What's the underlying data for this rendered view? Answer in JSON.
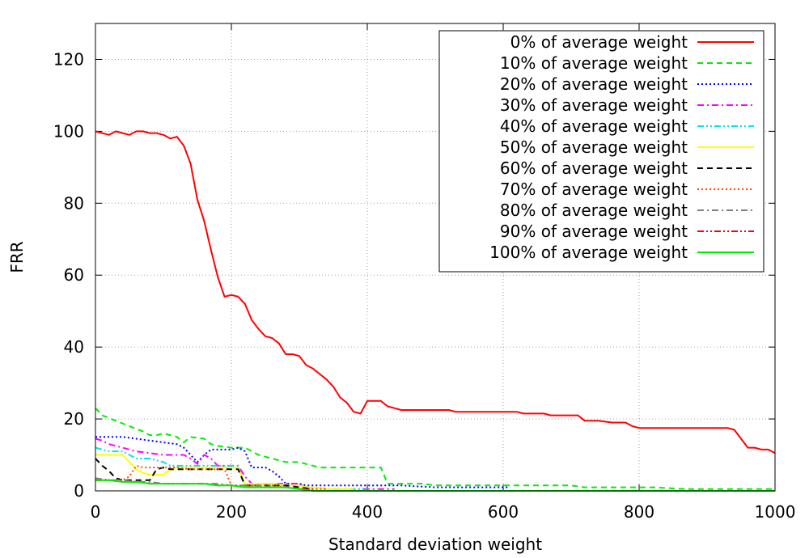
{
  "chart_data": {
    "type": "line",
    "title": "",
    "xlabel": "Standard deviation weight",
    "ylabel": "FRR",
    "xlim": [
      0,
      1000
    ],
    "ylim": [
      0,
      130
    ],
    "xticks": [
      0,
      200,
      400,
      600,
      800,
      1000
    ],
    "yticks": [
      0,
      20,
      40,
      60,
      80,
      100,
      120
    ],
    "grid": true,
    "legend_position": "top-right",
    "series": [
      {
        "name": "0% of average weight",
        "color": "#ff0000",
        "dash": "solid",
        "x": [
          0,
          10,
          20,
          30,
          40,
          50,
          60,
          70,
          80,
          90,
          100,
          110,
          120,
          130,
          140,
          150,
          160,
          170,
          180,
          190,
          200,
          210,
          220,
          230,
          240,
          250,
          260,
          270,
          280,
          290,
          300,
          310,
          320,
          330,
          340,
          350,
          360,
          370,
          380,
          390,
          400,
          410,
          420,
          430,
          440,
          450,
          460,
          500,
          520,
          530,
          560,
          600,
          620,
          630,
          660,
          670,
          680,
          700,
          710,
          720,
          740,
          760,
          770,
          780,
          790,
          800,
          920,
          930,
          940,
          960,
          970,
          980,
          990,
          1000
        ],
        "y": [
          100,
          99.5,
          99,
          100,
          99.5,
          99,
          100,
          100,
          99.5,
          99.5,
          99,
          98,
          98.5,
          96,
          91,
          81,
          75,
          67,
          59.5,
          54,
          54.5,
          54,
          52,
          47.5,
          45,
          43,
          42.5,
          41,
          38,
          38,
          37.5,
          35,
          34,
          32.5,
          31,
          29,
          26,
          24.5,
          22,
          21.5,
          25,
          25,
          25,
          23.5,
          23,
          22.5,
          22.5,
          22.5,
          22.5,
          22,
          22,
          22,
          22,
          21.5,
          21.5,
          21,
          21,
          21,
          21,
          19.5,
          19.5,
          19,
          19,
          19,
          18,
          17.5,
          17.5,
          17.5,
          17,
          12,
          12,
          11.5,
          11.5,
          10.5
        ]
      },
      {
        "name": "10% of average weight",
        "color": "#00ee00",
        "dash": "dashed",
        "x": [
          0,
          10,
          30,
          50,
          70,
          80,
          90,
          100,
          120,
          130,
          140,
          160,
          170,
          180,
          200,
          220,
          240,
          260,
          280,
          300,
          310,
          330,
          350,
          420,
          430,
          460,
          480,
          500,
          560,
          600,
          700,
          720,
          780,
          800,
          820,
          870,
          1000
        ],
        "y": [
          23,
          21,
          19.5,
          18,
          16.5,
          15.5,
          15.5,
          16,
          15,
          13.5,
          15,
          14.5,
          13,
          12.5,
          12,
          12,
          10,
          9,
          8,
          8,
          7.5,
          6.5,
          6.5,
          6.5,
          2,
          2,
          2,
          1.5,
          1.5,
          1.5,
          1.5,
          1,
          1,
          1,
          1,
          0.5,
          0.5
        ]
      },
      {
        "name": "20% of average weight",
        "color": "#0000ff",
        "dash": "dotted",
        "x": [
          0,
          20,
          40,
          60,
          80,
          100,
          120,
          130,
          140,
          150,
          160,
          170,
          180,
          190,
          200,
          210,
          220,
          230,
          250,
          260,
          270,
          280,
          300,
          310,
          320,
          340,
          360,
          400,
          450,
          500,
          520,
          560,
          600,
          610
        ],
        "y": [
          15,
          15,
          15,
          14.5,
          14,
          13.5,
          13,
          12,
          10,
          8,
          10,
          11.5,
          11.5,
          11.5,
          11.5,
          12,
          11,
          6.5,
          6.5,
          5.5,
          4,
          2,
          2,
          1.5,
          1.5,
          1.5,
          1.5,
          1.5,
          1.5,
          1,
          1,
          1,
          1,
          1
        ]
      },
      {
        "name": "30% of average weight",
        "color": "#ff00ff",
        "dash": "dashdot",
        "x": [
          0,
          10,
          20,
          40,
          60,
          80,
          100,
          120,
          130,
          140,
          150,
          160,
          170,
          180,
          200,
          210,
          220,
          230,
          260,
          280,
          300,
          310,
          350,
          400,
          440
        ],
        "y": [
          14.5,
          14,
          13,
          12,
          11,
          10.5,
          10,
          10,
          10,
          9,
          7.5,
          10,
          9,
          7,
          7,
          7,
          4,
          2,
          2,
          2,
          2,
          1,
          0.5,
          0.5,
          0.5
        ]
      },
      {
        "name": "40% of average weight",
        "color": "#00e5ee",
        "dash": "dashdotdot",
        "x": [
          0,
          10,
          20,
          40,
          50,
          60,
          80,
          90,
          100,
          110,
          120,
          140,
          160,
          180,
          200,
          210,
          220,
          240,
          260,
          280,
          300,
          310,
          320,
          340,
          360,
          400
        ],
        "y": [
          12,
          11.5,
          11,
          11,
          10,
          9,
          9,
          8.5,
          8,
          7,
          7,
          7,
          7,
          7,
          7,
          7,
          1.5,
          1.5,
          1.5,
          1.5,
          1.5,
          1,
          1,
          0.5,
          0.5,
          0.5
        ]
      },
      {
        "name": "50% of average weight",
        "color": "#ffff00",
        "dash": "solid",
        "x": [
          0,
          20,
          40,
          50,
          60,
          70,
          80,
          90,
          100,
          110,
          120,
          130,
          140,
          160,
          180,
          200,
          210,
          220,
          240,
          260,
          280,
          300,
          310,
          320,
          340,
          360,
          380
        ],
        "y": [
          10,
          10,
          10,
          8,
          6,
          5,
          4.5,
          4.5,
          4.5,
          6,
          6.5,
          6.5,
          6.5,
          6.5,
          6.5,
          6.5,
          6.5,
          2,
          2,
          2,
          1.5,
          1.5,
          1,
          1,
          0.5,
          0.5,
          0.5
        ]
      },
      {
        "name": "60% of average weight",
        "color": "#000000",
        "dash": "dashed",
        "x": [
          0,
          10,
          20,
          30,
          40,
          50,
          60,
          70,
          80,
          90,
          100,
          110,
          120,
          140,
          160,
          180,
          200,
          210,
          220,
          240,
          260,
          280,
          300,
          320
        ],
        "y": [
          9,
          7,
          5.5,
          3.5,
          3,
          3,
          3,
          3,
          3,
          6,
          6.5,
          6,
          6,
          6,
          6,
          6,
          6,
          6,
          1.5,
          1.5,
          1.5,
          1.5,
          1,
          0.5
        ]
      },
      {
        "name": "70% of average weight",
        "color": "#ff4500",
        "dash": "dotted",
        "x": [
          0,
          20,
          40,
          50,
          60,
          70,
          80,
          100,
          120,
          140,
          160,
          180,
          190,
          200,
          210,
          220,
          240,
          260,
          280,
          300,
          320,
          340
        ],
        "y": [
          3,
          3,
          3,
          4,
          7,
          6.5,
          6.5,
          6.5,
          6.5,
          6,
          6,
          6,
          6,
          1.5,
          1.5,
          1.5,
          1.5,
          1.5,
          1,
          0.5,
          0.5,
          0.5
        ]
      },
      {
        "name": "80% of average weight",
        "color": "#808080",
        "dash": "dashdot",
        "x": [
          0,
          20,
          40,
          60,
          80,
          100,
          120,
          140,
          160,
          180,
          200,
          220,
          240,
          260,
          280,
          300,
          320
        ],
        "y": [
          3.5,
          3,
          3,
          2.5,
          2.5,
          2,
          2,
          2,
          2,
          2,
          1.5,
          1.5,
          1.5,
          1,
          1,
          0.5,
          0.5
        ]
      },
      {
        "name": "90% of average weight",
        "color": "#ff0000",
        "dash": "dashdotdot",
        "x": [
          0,
          20,
          40,
          60,
          80,
          100,
          120,
          140,
          160,
          180,
          200,
          220,
          240,
          260,
          280,
          300,
          320
        ],
        "y": [
          3,
          3,
          2.5,
          2.5,
          2,
          2,
          2,
          2,
          2,
          1.5,
          1.5,
          1,
          1,
          1,
          1,
          0.5,
          0.5
        ]
      },
      {
        "name": "100% of average weight",
        "color": "#00ee00",
        "dash": "solid",
        "x": [
          0,
          20,
          40,
          60,
          80,
          100,
          120,
          140,
          160,
          180,
          200,
          220,
          240,
          260,
          280,
          300,
          320,
          400,
          600,
          800,
          1000
        ],
        "y": [
          3,
          3,
          2.5,
          2.5,
          2,
          2,
          2,
          2,
          2,
          1.5,
          1.5,
          1,
          1,
          1,
          1,
          0.5,
          0,
          0,
          0,
          0,
          0
        ]
      }
    ]
  }
}
